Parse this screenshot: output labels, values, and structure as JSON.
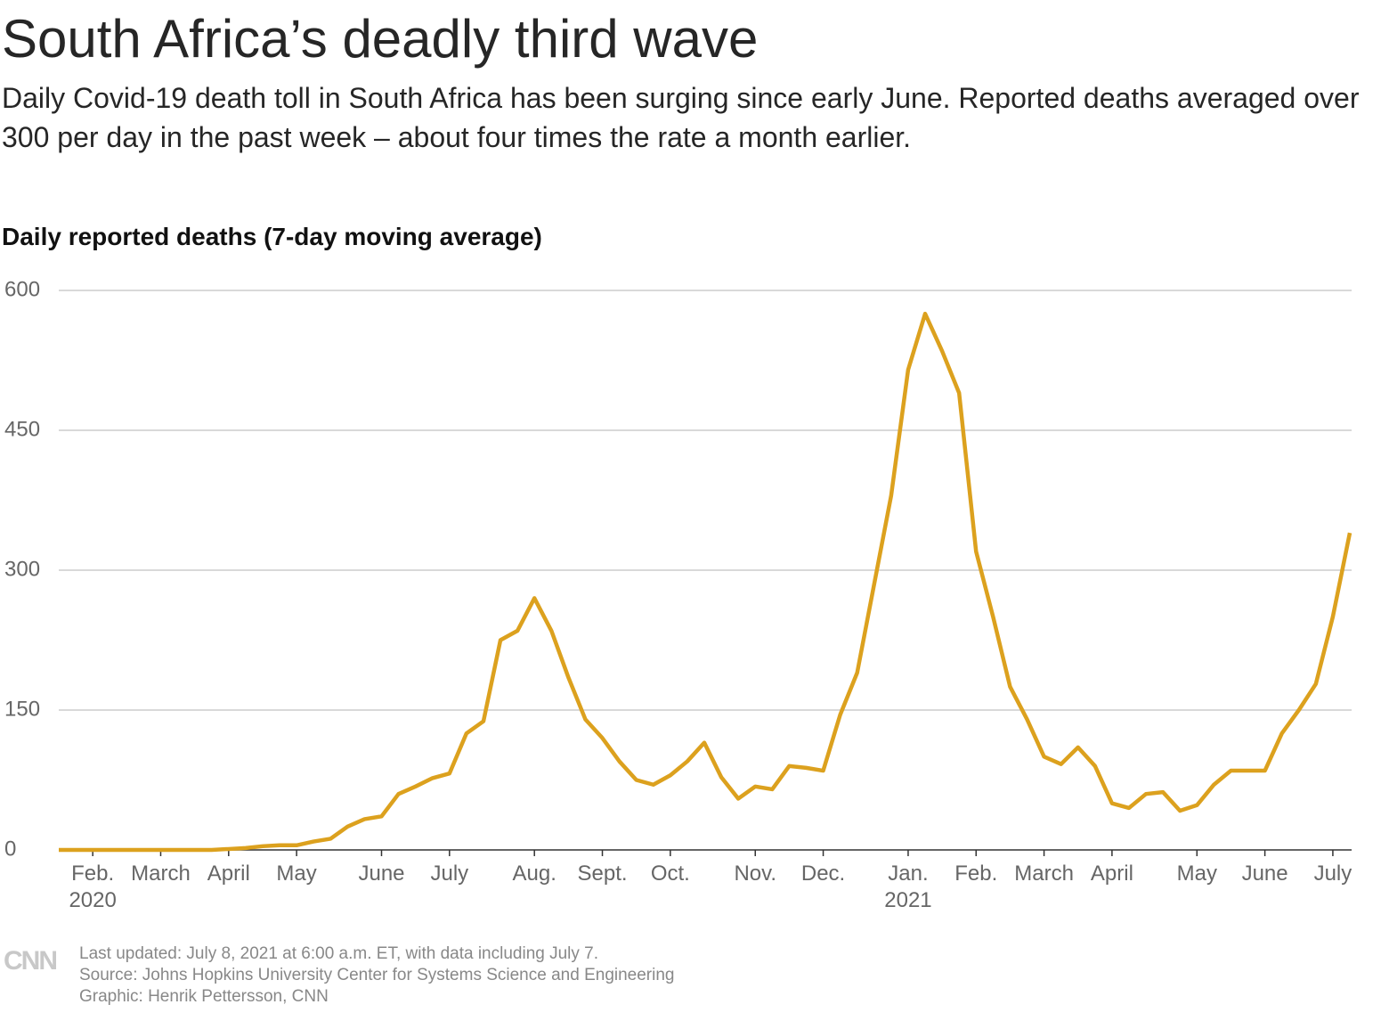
{
  "chart_data": {
    "type": "line",
    "title": "South Africa’s deadly third wave",
    "subtitle": "Daily Covid-19 death toll in South Africa has been surging since early June. Reported deaths averaged over 300 per day in the past week – about four times the rate a month earlier.",
    "y_label": "Daily reported deaths (7-day moving average)",
    "categories": [
      null,
      null,
      "Feb.\n2020",
      null,
      null,
      null,
      "March",
      null,
      null,
      null,
      "April",
      null,
      null,
      null,
      "May",
      null,
      null,
      null,
      null,
      "June",
      null,
      null,
      null,
      "July",
      null,
      null,
      null,
      null,
      "Aug.",
      null,
      null,
      null,
      "Sept.",
      null,
      null,
      null,
      "Oct.",
      null,
      null,
      null,
      null,
      "Nov.",
      null,
      null,
      null,
      "Dec.",
      null,
      null,
      null,
      null,
      "Jan.\n2021",
      null,
      null,
      null,
      "Feb.",
      null,
      null,
      null,
      "March",
      null,
      null,
      null,
      "April",
      null,
      null,
      null,
      null,
      "May",
      null,
      null,
      null,
      "June",
      null,
      null,
      null,
      "July",
      null
    ],
    "series": [
      {
        "name": "Daily reported deaths",
        "color": "#dca11e",
        "values": [
          0,
          0,
          0,
          0,
          0,
          0,
          0,
          0,
          0,
          0,
          1,
          2,
          4,
          5,
          5,
          9,
          12,
          25,
          33,
          36,
          60,
          68,
          77,
          82,
          125,
          138,
          225,
          235,
          270,
          235,
          185,
          140,
          120,
          95,
          75,
          70,
          80,
          95,
          115,
          78,
          55,
          68,
          65,
          90,
          88,
          85,
          145,
          190,
          285,
          380,
          515,
          575,
          535,
          490,
          320,
          250,
          175,
          140,
          100,
          92,
          110,
          90,
          50,
          45,
          60,
          62,
          42,
          48,
          70,
          85,
          85,
          85,
          125,
          150,
          178,
          250,
          340
        ]
      }
    ],
    "ylim": [
      0,
      600
    ],
    "yticks": [
      0,
      150,
      300,
      450,
      600
    ],
    "grid": true,
    "logo": "CNN",
    "notes": [
      "Last updated: July 8, 2021 at 6:00 a.m. ET, with data including July 7.",
      "Source: Johns Hopkins University Center for Systems Science and Engineering",
      "Graphic: Henrik Pettersson, CNN"
    ]
  }
}
